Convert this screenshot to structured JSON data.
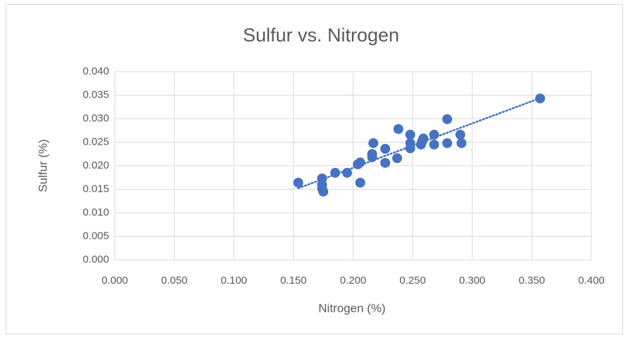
{
  "chart_data": {
    "type": "scatter",
    "title": "Sulfur vs. Nitrogen",
    "xlabel": "Nitrogen (%)",
    "ylabel": "Sulfur (%)",
    "series": [
      {
        "color": "#4472c4",
        "x": [
          0.154,
          0.174,
          0.174,
          0.174,
          0.175,
          0.185,
          0.195,
          0.204,
          0.206,
          0.206,
          0.217,
          0.216,
          0.216,
          0.227,
          0.227,
          0.238,
          0.237,
          0.248,
          0.248,
          0.248,
          0.257,
          0.258,
          0.259,
          0.268,
          0.268,
          0.279,
          0.279,
          0.29,
          0.291,
          0.357
        ],
        "values": [
          0.0164,
          0.0173,
          0.016,
          0.0152,
          0.0145,
          0.0185,
          0.0185,
          0.0203,
          0.0207,
          0.0164,
          0.0248,
          0.0225,
          0.0218,
          0.0236,
          0.0206,
          0.0278,
          0.0216,
          0.0266,
          0.0248,
          0.0237,
          0.0245,
          0.0252,
          0.0258,
          0.0266,
          0.0245,
          0.0299,
          0.0248,
          0.0266,
          0.0248,
          0.0343
        ]
      }
    ],
    "trendline": "linear",
    "xlim": [
      0,
      0.4
    ],
    "xticks": [
      {
        "value": 0,
        "label": "0.000"
      },
      {
        "value": 0.05,
        "label": "0.050"
      },
      {
        "value": 0.1,
        "label": "0.100"
      },
      {
        "value": 0.15,
        "label": "0.150"
      },
      {
        "value": 0.2,
        "label": "0.200"
      },
      {
        "value": 0.25,
        "label": "0.250"
      },
      {
        "value": 0.3,
        "label": "0.300"
      },
      {
        "value": 0.35,
        "label": "0.350"
      },
      {
        "value": 0.4,
        "label": "0.400"
      }
    ],
    "ylim": [
      0,
      0.04
    ],
    "yticks": [
      {
        "value": 0,
        "label": "0.000"
      },
      {
        "value": 0.005,
        "label": "0.005"
      },
      {
        "value": 0.01,
        "label": "0.010"
      },
      {
        "value": 0.015,
        "label": "0.015"
      },
      {
        "value": 0.02,
        "label": "0.020"
      },
      {
        "value": 0.025,
        "label": "0.025"
      },
      {
        "value": 0.03,
        "label": "0.030"
      },
      {
        "value": 0.035,
        "label": "0.035"
      },
      {
        "value": 0.04,
        "label": "0.040"
      }
    ],
    "grid": true
  }
}
